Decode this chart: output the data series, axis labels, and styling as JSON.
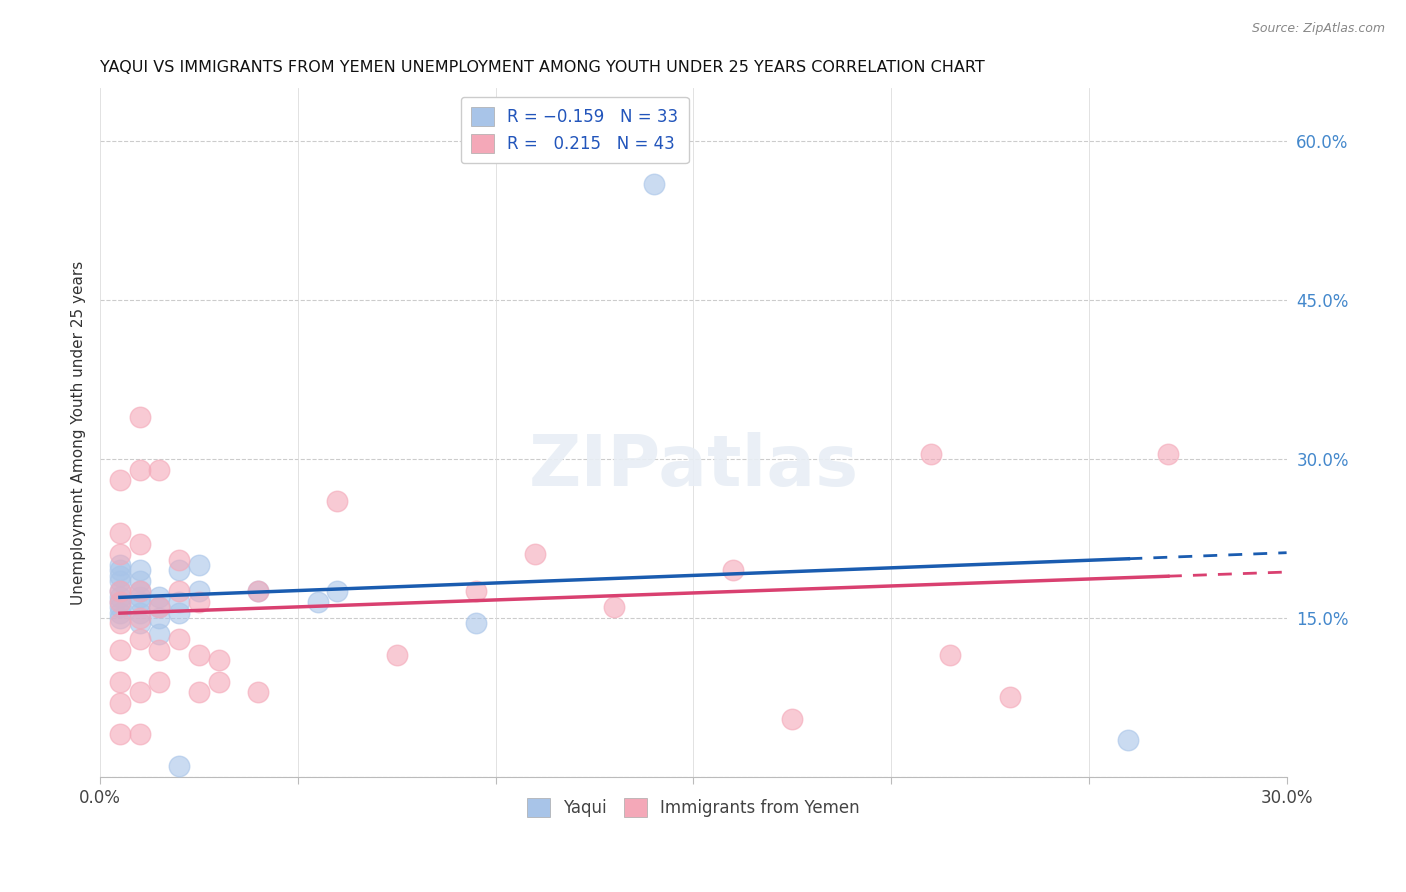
{
  "title": "YAQUI VS IMMIGRANTS FROM YEMEN UNEMPLOYMENT AMONG YOUTH UNDER 25 YEARS CORRELATION CHART",
  "source": "Source: ZipAtlas.com",
  "ylabel": "Unemployment Among Youth under 25 years",
  "xlim": [
    0,
    0.3
  ],
  "ylim": [
    0,
    0.65
  ],
  "xticks": [
    0.0,
    0.05,
    0.1,
    0.15,
    0.2,
    0.25,
    0.3
  ],
  "xticklabels": [
    "0.0%",
    "",
    "",
    "",
    "",
    "",
    "30.0%"
  ],
  "yticks_right": [
    0.0,
    0.15,
    0.3,
    0.45,
    0.6
  ],
  "ytick_right_labels": [
    "",
    "15.0%",
    "30.0%",
    "45.0%",
    "60.0%"
  ],
  "yaqui_color": "#a8c4e8",
  "yemen_color": "#f4a8b8",
  "yaqui_line_color": "#1a5cb0",
  "yemen_line_color": "#d94070",
  "background_color": "#ffffff",
  "grid_color": "#cccccc",
  "yaqui_x": [
    0.005,
    0.005,
    0.005,
    0.005,
    0.005,
    0.005,
    0.005,
    0.005,
    0.005,
    0.005,
    0.01,
    0.01,
    0.01,
    0.01,
    0.01,
    0.01,
    0.01,
    0.015,
    0.015,
    0.015,
    0.015,
    0.02,
    0.02,
    0.02,
    0.025,
    0.025,
    0.04,
    0.055,
    0.06,
    0.095,
    0.14,
    0.26,
    0.02
  ],
  "yaqui_y": [
    0.15,
    0.155,
    0.16,
    0.165,
    0.17,
    0.175,
    0.185,
    0.19,
    0.195,
    0.2,
    0.145,
    0.155,
    0.165,
    0.17,
    0.175,
    0.185,
    0.195,
    0.135,
    0.15,
    0.16,
    0.17,
    0.155,
    0.165,
    0.195,
    0.175,
    0.2,
    0.175,
    0.165,
    0.175,
    0.145,
    0.56,
    0.035,
    0.01
  ],
  "yemen_x": [
    0.005,
    0.005,
    0.005,
    0.005,
    0.005,
    0.005,
    0.005,
    0.005,
    0.005,
    0.005,
    0.01,
    0.01,
    0.01,
    0.01,
    0.01,
    0.01,
    0.01,
    0.01,
    0.015,
    0.015,
    0.015,
    0.015,
    0.02,
    0.02,
    0.02,
    0.025,
    0.025,
    0.025,
    0.03,
    0.03,
    0.04,
    0.04,
    0.06,
    0.075,
    0.095,
    0.11,
    0.13,
    0.16,
    0.175,
    0.21,
    0.215,
    0.23,
    0.27
  ],
  "yemen_y": [
    0.04,
    0.07,
    0.09,
    0.12,
    0.145,
    0.165,
    0.175,
    0.21,
    0.23,
    0.28,
    0.04,
    0.08,
    0.13,
    0.15,
    0.175,
    0.22,
    0.29,
    0.34,
    0.09,
    0.12,
    0.16,
    0.29,
    0.13,
    0.175,
    0.205,
    0.08,
    0.115,
    0.165,
    0.09,
    0.11,
    0.08,
    0.175,
    0.26,
    0.115,
    0.175,
    0.21,
    0.16,
    0.195,
    0.055,
    0.305,
    0.115,
    0.075,
    0.305
  ]
}
